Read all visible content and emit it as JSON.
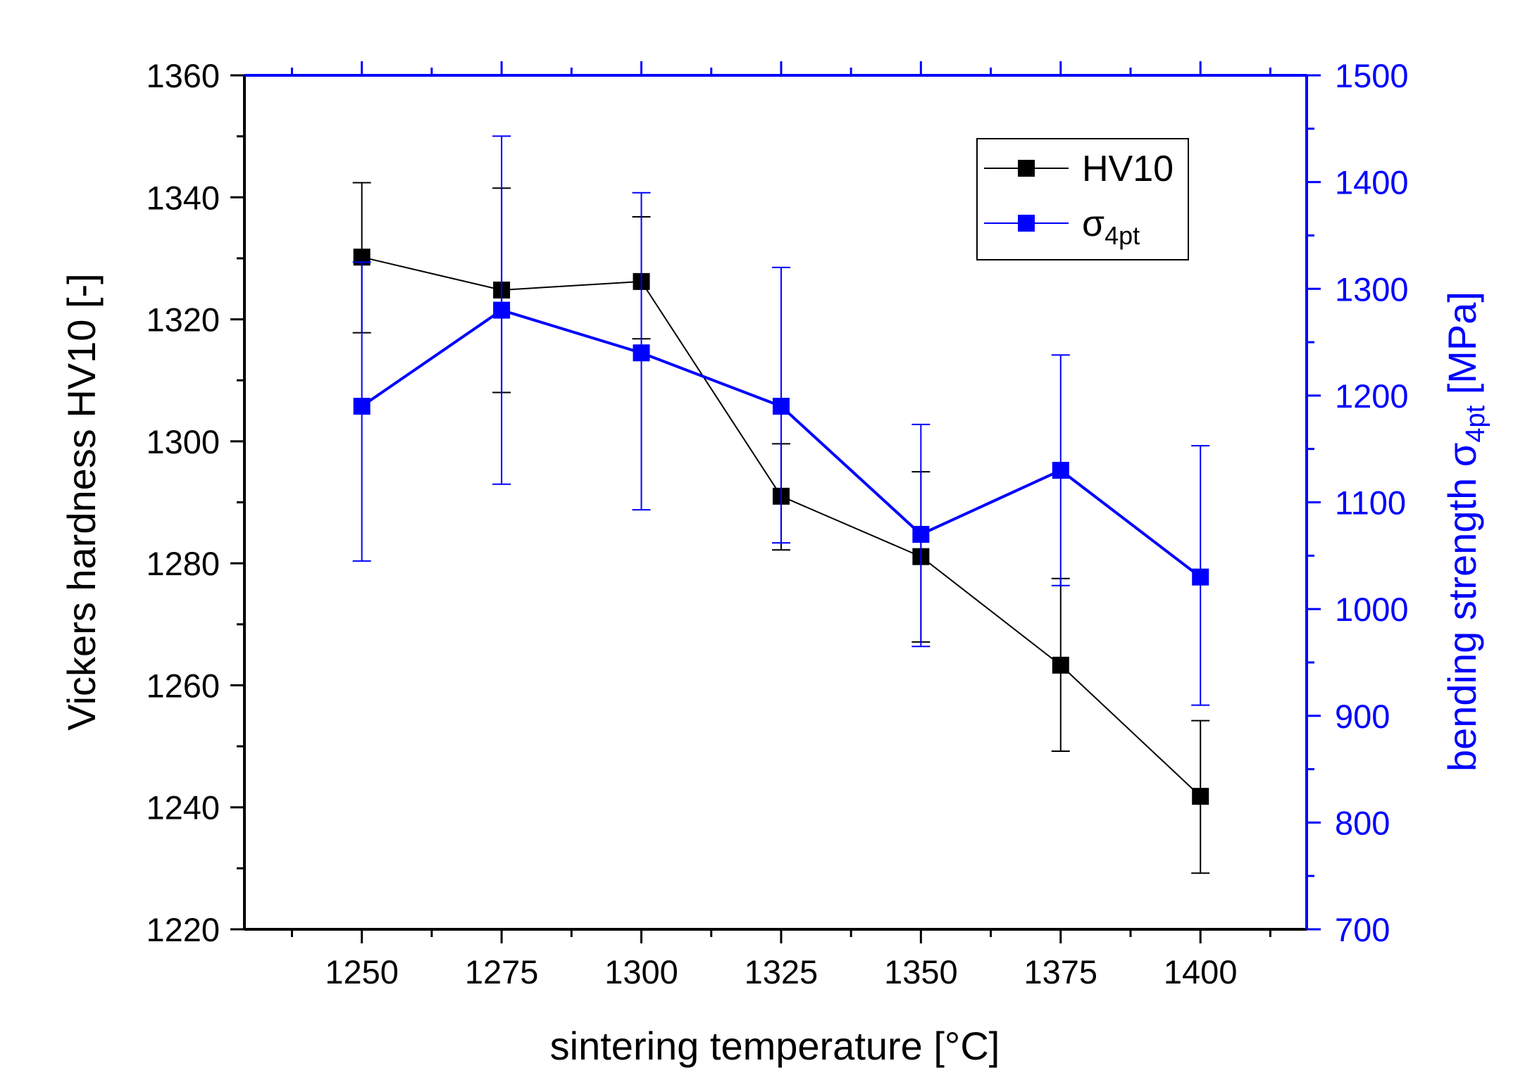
{
  "chart_data": {
    "type": "line",
    "title": "",
    "xlabel": "sintering temperature [°C]",
    "ylabel": "Vickers hardness HV10 [-]",
    "y2label": {
      "main": "bending strength σ",
      "sub": "4pt",
      "tail": " [MPa]"
    },
    "xlim": [
      1229,
      1419
    ],
    "ylim": [
      1220,
      1360
    ],
    "y2lim": [
      700,
      1500
    ],
    "x_ticks": [
      "1250",
      "1275",
      "1300",
      "1325",
      "1350",
      "1375",
      "1400"
    ],
    "y_ticks": [
      "1220",
      "1240",
      "1260",
      "1280",
      "1300",
      "1320",
      "1340",
      "1360"
    ],
    "y2_ticks": [
      "700",
      "800",
      "900",
      "1000",
      "1100",
      "1200",
      "1300",
      "1400",
      "1500"
    ],
    "grid": false,
    "legend_position": "top-right",
    "x": [
      1250,
      1275,
      1300,
      1325,
      1350,
      1375,
      1400
    ],
    "series": [
      {
        "name": "HV10",
        "axis": "left",
        "color": "#000000",
        "values": [
          1330.2,
          1324.8,
          1326.2,
          1291.0,
          1281.1,
          1263.3,
          1241.8
        ],
        "err_low": [
          1317.8,
          1308.0,
          1316.8,
          1282.2,
          1267.1,
          1249.2,
          1229.2
        ],
        "err_high": [
          1342.4,
          1341.5,
          1336.8,
          1299.6,
          1295.0,
          1277.5,
          1254.2
        ]
      },
      {
        "name": {
          "main": "σ",
          "sub": "4pt"
        },
        "axis": "right",
        "color": "#0000ff",
        "values": [
          1190,
          1280,
          1240,
          1190,
          1070,
          1130,
          1030
        ],
        "err_low": [
          1045,
          1117,
          1093,
          1062,
          965,
          1022,
          910
        ],
        "err_high": [
          1325,
          1443,
          1390,
          1320,
          1173,
          1238,
          1153
        ]
      }
    ]
  }
}
